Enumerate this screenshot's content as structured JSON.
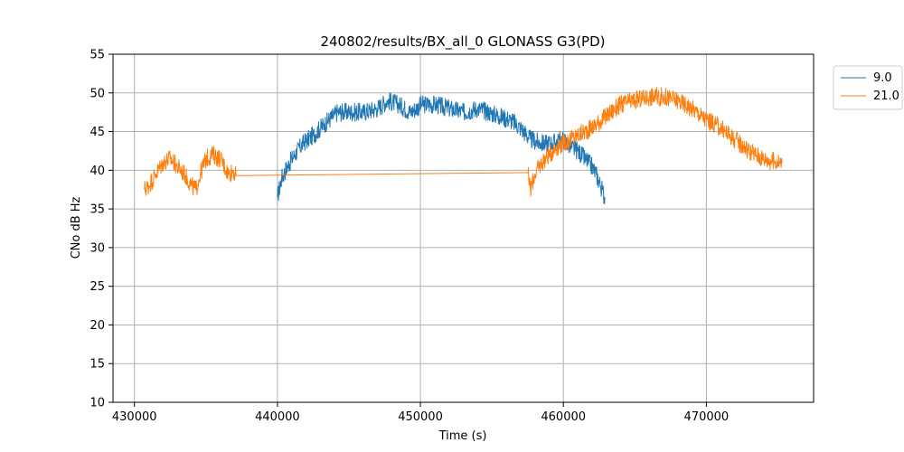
{
  "chart_data": {
    "type": "line",
    "title": "240802/results/BX_all_0 GLONASS G3(PD)",
    "xlabel": "Time (s)",
    "ylabel": "CNo dB Hz",
    "xlim": [
      428500,
      477500
    ],
    "ylim": [
      10,
      55
    ],
    "xticks": [
      430000,
      440000,
      450000,
      460000,
      470000
    ],
    "xtick_labels": [
      "430000",
      "440000",
      "450000",
      "460000",
      "470000"
    ],
    "yticks": [
      10,
      15,
      20,
      25,
      30,
      35,
      40,
      45,
      50,
      55
    ],
    "ytick_labels": [
      "10",
      "15",
      "20",
      "25",
      "30",
      "35",
      "40",
      "45",
      "50",
      "55"
    ],
    "grid": true,
    "legend": "upper-right-outside",
    "series": [
      {
        "name": "9.0",
        "color": "#1f77b4",
        "x": [
          440000,
          440300,
          440700,
          441200,
          441800,
          442500,
          443300,
          444200,
          445000,
          446000,
          447000,
          447700,
          448500,
          449300,
          450100,
          451000,
          452000,
          453000,
          454000,
          454800,
          455500,
          456300,
          457000,
          457700,
          458400,
          459200,
          460000,
          460500,
          461000,
          461500,
          462000,
          462300,
          462600,
          462900
        ],
        "y": [
          36.5,
          39.0,
          40.5,
          42.0,
          43.5,
          44.5,
          46.0,
          47.5,
          47.5,
          47.5,
          48.0,
          49.0,
          48.5,
          47.5,
          48.5,
          48.5,
          48.0,
          47.5,
          48.0,
          47.5,
          47.0,
          46.5,
          45.5,
          44.0,
          43.5,
          43.5,
          44.0,
          43.0,
          42.5,
          41.5,
          40.5,
          39.5,
          38.0,
          36.5
        ]
      },
      {
        "name": "21.0",
        "color": "#ff7f0e",
        "x": [
          430700,
          431000,
          431500,
          432000,
          432500,
          433000,
          433500,
          434000,
          434300,
          434600,
          435000,
          435500,
          436000,
          436300,
          436600,
          436900,
          437100,
          457500,
          457700,
          458000,
          458500,
          459000,
          459500,
          460000,
          460500,
          461000,
          462000,
          463000,
          464000,
          465000,
          466000,
          467000,
          468000,
          469000,
          470000,
          471000,
          472000,
          473000,
          474000,
          475000,
          475300
        ],
        "y": [
          37.5,
          38.0,
          39.5,
          41.0,
          41.5,
          40.5,
          39.5,
          38.0,
          37.5,
          39.5,
          41.5,
          42.0,
          41.5,
          40.5,
          39.5,
          40.0,
          39.3,
          39.7,
          37.5,
          39.5,
          41.0,
          42.0,
          43.0,
          43.5,
          44.0,
          44.5,
          45.5,
          47.0,
          48.5,
          49.0,
          49.5,
          49.5,
          49.0,
          48.0,
          46.5,
          45.5,
          44.0,
          42.5,
          41.5,
          41.0,
          41.0
        ]
      }
    ]
  }
}
